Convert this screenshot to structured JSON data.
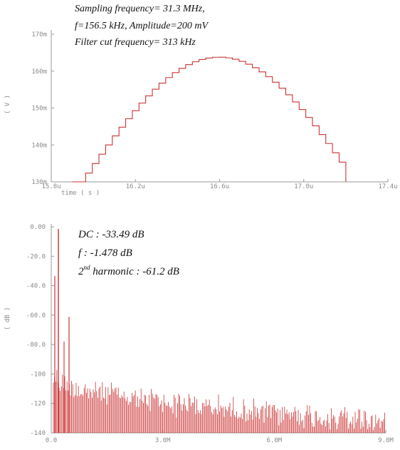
{
  "chart_data": [
    {
      "type": "line",
      "annotations": [
        "Sampling frequency= 31.3 MHz,",
        "f=156.5 kHz, Amplitude=200 mV",
        "Filter cut frequency= 313 kHz"
      ],
      "xlabel": "time ( s )",
      "ylabel": "( V )",
      "xticks": [
        "15.8u",
        "16.2u",
        "16.6u",
        "17.0u",
        "17.4u"
      ],
      "yticks": [
        "130m",
        "140m",
        "150m",
        "160m",
        "170m"
      ],
      "xlim": [
        15.8,
        17.4
      ],
      "ylim": [
        130,
        170
      ],
      "x_unit_scale": "u",
      "y_unit_scale": "m",
      "series": [
        {
          "color": "#cc3333",
          "step": true,
          "center_x": 16.6,
          "peak": 163.8,
          "start_x": 15.9,
          "end_x": 17.2,
          "step_count": 41,
          "baseline": 130
        }
      ],
      "grid": false
    },
    {
      "type": "bar",
      "annotations": {
        "dc": "DC : -33.49 dB",
        "f": "f : -1.478 dB",
        "h2_prefix": "2",
        "h2_sup": "nd",
        "h2_suffix": " harmonic : -61.2 dB"
      },
      "ylabel": "( dB )",
      "xticks": [
        "0.0",
        "3.0M",
        "6.0M",
        "9.0M"
      ],
      "yticks": [
        "0.00",
        "-20.0",
        "-40.0",
        "-60.0",
        "-80.0",
        "-100",
        "-120",
        "-140"
      ],
      "xlim": [
        0,
        9.0
      ],
      "ylim": [
        -140,
        0
      ],
      "x_unit_scale": "M",
      "dc_value": -33.49,
      "fundamental_value": -1.478,
      "second_harmonic_value": -61.2,
      "noise_floor_start": -95,
      "noise_floor_end": -128,
      "color": "#cc3333",
      "grid": false
    }
  ]
}
